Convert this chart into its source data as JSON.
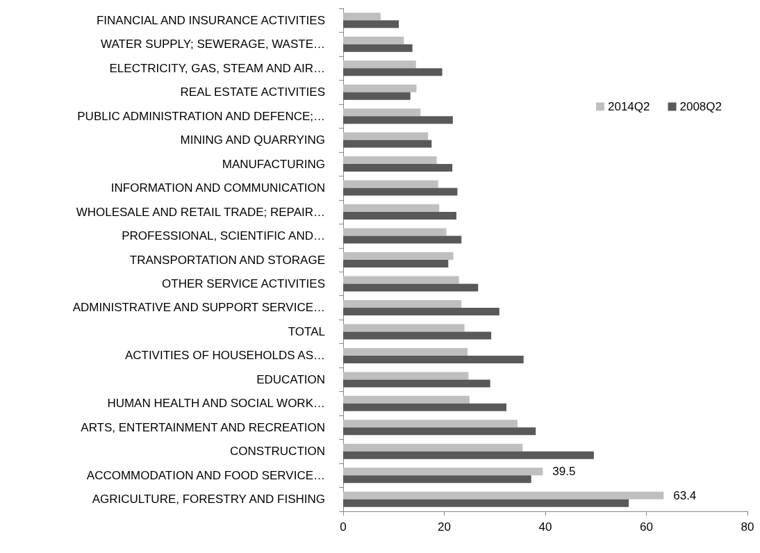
{
  "chart_data": {
    "type": "bar",
    "orientation": "horizontal",
    "categories": [
      "FINANCIAL AND INSURANCE ACTIVITIES",
      "WATER SUPPLY; SEWERAGE, WASTE…",
      "ELECTRICITY, GAS, STEAM AND AIR…",
      "REAL ESTATE ACTIVITIES",
      "PUBLIC ADMINISTRATION AND DEFENCE;…",
      "MINING AND QUARRYING",
      "MANUFACTURING",
      "INFORMATION AND COMMUNICATION",
      "WHOLESALE AND RETAIL TRADE; REPAIR…",
      "PROFESSIONAL, SCIENTIFIC AND…",
      "TRANSPORTATION AND STORAGE",
      "OTHER SERVICE ACTIVITIES",
      "ADMINISTRATIVE AND SUPPORT SERVICE…",
      "TOTAL",
      "ACTIVITIES OF HOUSEHOLDS AS…",
      "EDUCATION",
      "HUMAN HEALTH AND SOCIAL WORK…",
      "ARTS, ENTERTAINMENT AND RECREATION",
      "CONSTRUCTION",
      "ACCOMMODATION AND FOOD SERVICE…",
      "AGRICULTURE, FORESTRY AND FISHING"
    ],
    "series": [
      {
        "name": "2014Q2",
        "color": "#bfbfbf",
        "values": [
          7.4,
          12.0,
          14.4,
          14.5,
          15.3,
          16.8,
          18.5,
          18.8,
          19.0,
          20.4,
          21.8,
          22.9,
          23.4,
          24.0,
          24.6,
          24.8,
          25.0,
          34.5,
          35.5,
          39.5,
          63.4
        ],
        "value_labels": [
          null,
          null,
          null,
          null,
          null,
          null,
          null,
          null,
          null,
          null,
          null,
          null,
          null,
          null,
          null,
          null,
          null,
          null,
          null,
          "39.5",
          "63.4"
        ]
      },
      {
        "name": "2008Q2",
        "color": "#595959",
        "values": [
          11.0,
          13.7,
          19.6,
          13.3,
          21.7,
          17.5,
          21.6,
          22.6,
          22.4,
          23.4,
          20.8,
          26.7,
          30.9,
          29.3,
          35.7,
          29.1,
          32.3,
          38.1,
          49.6,
          37.2,
          56.5
        ]
      }
    ],
    "xlim": [
      0,
      80
    ],
    "xticks": [
      0,
      20,
      40,
      60,
      80
    ],
    "grid": false,
    "legend": "top right"
  }
}
